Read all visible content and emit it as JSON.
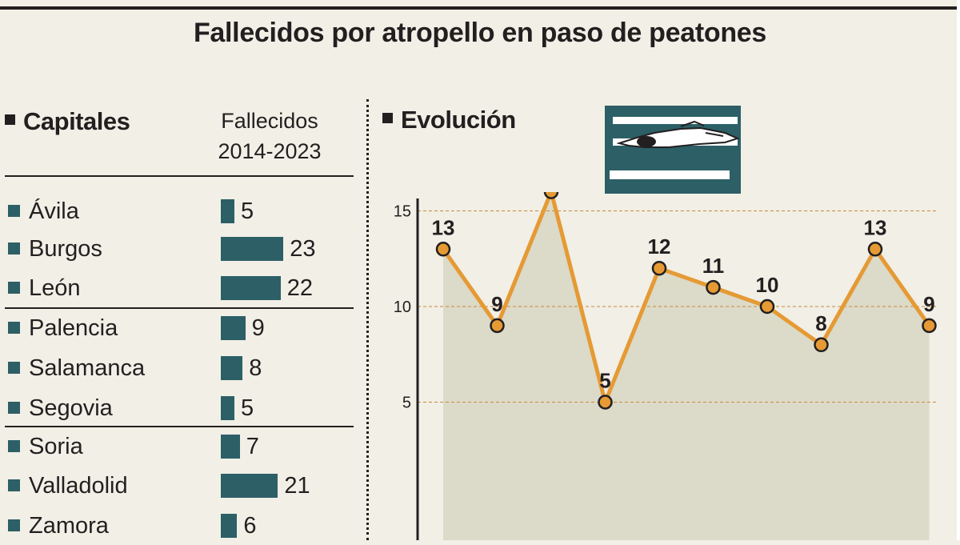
{
  "title": "Fallecidos por atropello en paso de peatones",
  "capitales": {
    "heading": "Capitales",
    "column_header_line1": "Fallecidos",
    "column_header_line2": "2014-2023",
    "rows": [
      {
        "name": "Ávila",
        "value": "5"
      },
      {
        "name": "Burgos",
        "value": "23"
      },
      {
        "name": "León",
        "value": "22"
      },
      {
        "name": "Palencia",
        "value": "9"
      },
      {
        "name": "Salamanca",
        "value": "8"
      },
      {
        "name": "Segovia",
        "value": "5"
      },
      {
        "name": "Soria",
        "value": "7"
      },
      {
        "name": "Valladolid",
        "value": "21"
      },
      {
        "name": "Zamora",
        "value": "6"
      }
    ]
  },
  "evolucion": {
    "heading": "Evolución",
    "icon": "pedestrian-on-crosswalk-icon"
  },
  "colors": {
    "teal": "#2d5f66",
    "line": "#e59a34",
    "area": "#dcdac8",
    "background": "#f1efe6"
  },
  "chart_data": [
    {
      "type": "bar",
      "orientation": "horizontal",
      "categories": [
        "Ávila",
        "Burgos",
        "León",
        "Palencia",
        "Salamanca",
        "Segovia",
        "Soria",
        "Valladolid",
        "Zamora"
      ],
      "values": [
        5,
        23,
        22,
        9,
        8,
        5,
        7,
        21,
        6
      ],
      "title": "Capitales",
      "value_label": "Fallecidos 2014-2023"
    },
    {
      "type": "line",
      "title": "Evolución",
      "values": [
        13,
        9,
        16,
        5,
        12,
        11,
        10,
        8,
        13,
        9
      ],
      "y_ticks": [
        5,
        10,
        15,
        20
      ],
      "ylim": [
        0,
        20
      ],
      "area_fill": true,
      "grid": "horizontal dashed"
    }
  ]
}
